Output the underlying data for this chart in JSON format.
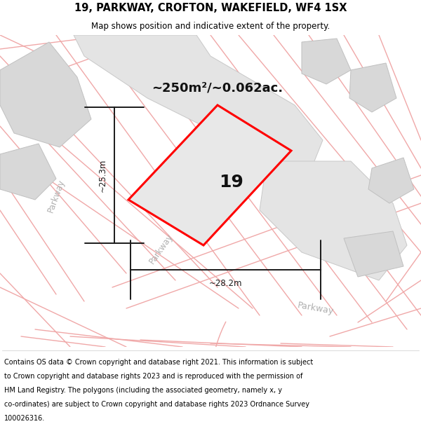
{
  "title_line1": "19, PARKWAY, CROFTON, WAKEFIELD, WF4 1SX",
  "title_line2": "Map shows position and indicative extent of the property.",
  "area_text": "~250m²/~0.062ac.",
  "property_number": "19",
  "dim_width": "~28.2m",
  "dim_height": "~25.3m",
  "footer_lines": [
    "Contains OS data © Crown copyright and database right 2021. This information is subject",
    "to Crown copyright and database rights 2023 and is reproduced with the permission of",
    "HM Land Registry. The polygons (including the associated geometry, namely x, y",
    "co-ordinates) are subject to Crown copyright and database rights 2023 Ordnance Survey",
    "100026316."
  ],
  "bg_color": "#ffffff",
  "pink_road": "#f0a8a8",
  "gray_bldg": "#d8d8d8",
  "gray_bldg_edge": "#c0c0c0",
  "gray_road_fill": "#e4e4e4",
  "gray_road_edge": "#c8c8c8",
  "prop_edge": "#ff0000",
  "prop_fill": "#e8e8e8",
  "dim_color": "#1a1a1a",
  "road_label_color": "#b0b0b0",
  "title_color": "#000000",
  "footer_color": "#000000"
}
